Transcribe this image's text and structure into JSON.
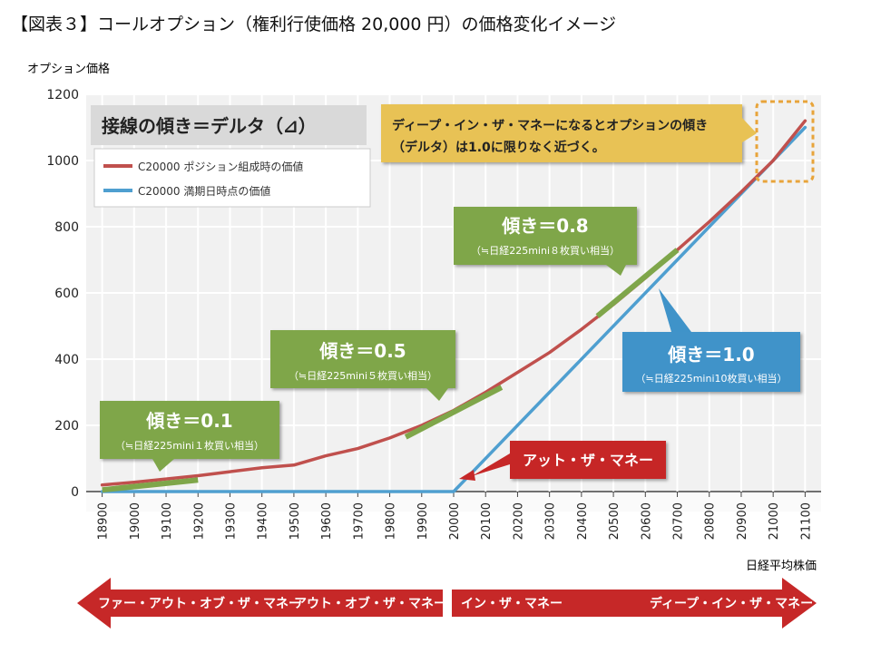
{
  "title": "【図表３】コールオプション（権利行使価格 20,000 円）の価格変化イメージ",
  "chart_data": {
    "type": "line",
    "ylabel": "オプション価格",
    "xlabel": "日経平均株価",
    "ylim": [
      0,
      1200
    ],
    "yticks": [
      0,
      200,
      400,
      600,
      800,
      1000,
      1200
    ],
    "xlim": [
      18850,
      21150
    ],
    "x_ticks": [
      18900,
      19000,
      19100,
      19200,
      19300,
      19400,
      19500,
      19600,
      19700,
      19800,
      19900,
      20000,
      20100,
      20200,
      20300,
      20400,
      20500,
      20600,
      20700,
      20800,
      20900,
      21000,
      21100
    ],
    "x_tick_labels": [
      "18900",
      "19000",
      "19100",
      "19200",
      "19300",
      "19400",
      "19500",
      "19600",
      "19700",
      "19800",
      "19900",
      "20000",
      "20100",
      "20200",
      "20300",
      "20400",
      "20500",
      "20600",
      "20700",
      "20800",
      "20900",
      "21000",
      "21100"
    ],
    "grid": true,
    "legend_placement": "top-left",
    "series": [
      {
        "name": "C20000 ポジション組成時の価値",
        "color": "#c0504d",
        "x": [
          18900,
          19000,
          19100,
          19200,
          19300,
          19400,
          19500,
          19600,
          19700,
          19800,
          19900,
          20000,
          20100,
          20200,
          20300,
          20400,
          20500,
          20600,
          20700,
          20800,
          20900,
          21000,
          21100
        ],
        "y": [
          20,
          28,
          38,
          48,
          60,
          72,
          80,
          108,
          130,
          162,
          200,
          245,
          300,
          360,
          420,
          490,
          565,
          645,
          730,
          815,
          905,
          1000,
          1120
        ]
      },
      {
        "name": "C20000 満期日時点の価値",
        "color": "#4f9fd0",
        "x": [
          18900,
          20000,
          21100
        ],
        "y": [
          0,
          0,
          1100
        ]
      }
    ],
    "tangent_segments": [
      {
        "x": [
          18900,
          19200
        ],
        "y": [
          5,
          35
        ]
      },
      {
        "x": [
          19850,
          20150
        ],
        "y": [
          165,
          315
        ]
      },
      {
        "x": [
          20450,
          20700
        ],
        "y": [
          530,
          730
        ]
      }
    ],
    "annotations": {
      "delta_heading": "接線の傾き＝デルタ（⊿）",
      "deep_itm_note": [
        "ディープ・イン・ザ・マネーになるとオプションの傾き",
        "（デルタ）は1.0に限りなく近づく。"
      ],
      "slope_01": {
        "title": "傾き＝0.1",
        "sub": "（≒日経225mini１枚買い相当）"
      },
      "slope_05": {
        "title": "傾き＝0.5",
        "sub": "（≒日経225mini５枚買い相当）"
      },
      "slope_08": {
        "title": "傾き＝0.8",
        "sub": "（≒日経225mini８枚買い相当）"
      },
      "slope_10": {
        "title": "傾き＝1.0",
        "sub": "（≒日経225mini10枚買い相当）"
      },
      "atm": "アット・ザ・マネー"
    },
    "bottom_arrows": {
      "left": [
        "ファー・アウト・オブ・ザ・マネー",
        "アウト・オブ・ザ・マネー"
      ],
      "right": [
        "イン・ザ・マネー",
        "ディープ・イン・ザ・マネー"
      ]
    },
    "colors": {
      "green_box": "#7fa64a",
      "blue_box": "#3f93c9",
      "red_box": "#c62828",
      "yellow_box": "#e8c255",
      "gray_box": "#d9d9d9",
      "plot_bg": "#f1f1f1",
      "arrow_red": "#c62828"
    }
  }
}
